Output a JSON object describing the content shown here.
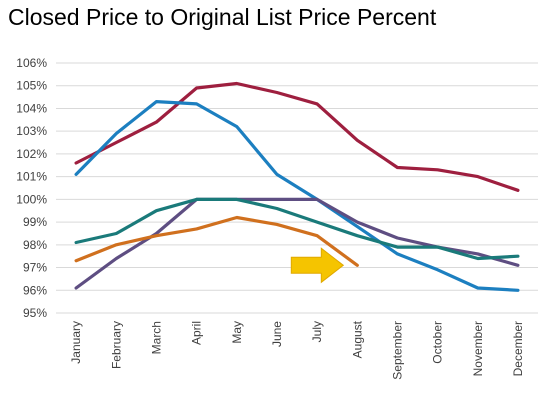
{
  "chart_data": {
    "type": "line",
    "title": "Closed Price to Original List Price Percent",
    "xlabel": "",
    "ylabel": "",
    "categories": [
      "January",
      "February",
      "March",
      "April",
      "May",
      "June",
      "July",
      "August",
      "September",
      "October",
      "November",
      "December"
    ],
    "ylim": [
      95,
      106
    ],
    "y_ticks": [
      "95%",
      "96%",
      "97%",
      "98%",
      "99%",
      "100%",
      "101%",
      "102%",
      "103%",
      "104%",
      "105%",
      "106%"
    ],
    "grid": true,
    "legend": "none",
    "series": [
      {
        "color": "#9E1F3F",
        "values": [
          101.6,
          102.5,
          103.4,
          104.9,
          105.1,
          104.7,
          104.2,
          102.6,
          101.4,
          101.3,
          101.0,
          100.4
        ]
      },
      {
        "color": "#1C7FC0",
        "values": [
          101.1,
          102.9,
          104.3,
          104.2,
          103.2,
          101.1,
          100.0,
          98.8,
          97.6,
          96.9,
          96.1,
          96.0
        ]
      },
      {
        "color": "#5E4E82",
        "values": [
          96.1,
          97.4,
          98.5,
          100.0,
          100.0,
          100.0,
          100.0,
          99.0,
          98.3,
          97.9,
          97.6,
          97.1
        ]
      },
      {
        "color": "#1A7A7A",
        "values": [
          98.1,
          98.5,
          99.5,
          100.0,
          100.0,
          99.6,
          99.0,
          98.4,
          97.9,
          97.9,
          97.4,
          97.5
        ]
      },
      {
        "color": "#D0701E",
        "values": [
          97.3,
          98.0,
          98.4,
          98.7,
          99.2,
          98.9,
          98.4,
          97.1,
          null,
          null,
          null,
          null
        ]
      }
    ],
    "annotation": {
      "type": "arrow",
      "icon": "right-arrow-icon",
      "color": "#F5C400",
      "x_category": "August",
      "y_value": 97.1
    }
  }
}
